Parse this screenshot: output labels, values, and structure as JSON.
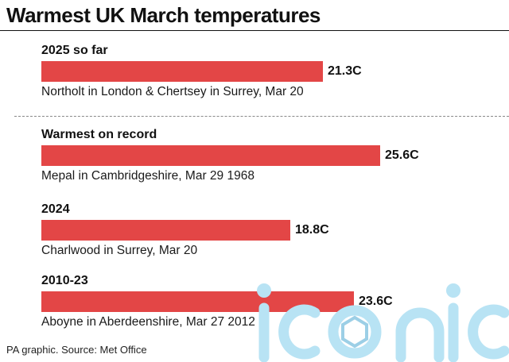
{
  "chart_data": {
    "type": "bar",
    "orientation": "horizontal",
    "title": "Warmest UK March temperatures",
    "unit": "C",
    "categories": [
      "2025 so far",
      "Warmest on record",
      "2024",
      "2010-23"
    ],
    "values": [
      21.3,
      25.6,
      18.8,
      23.6
    ],
    "value_labels": [
      "21.3C",
      "25.6C",
      "18.8C",
      "23.6C"
    ],
    "captions": [
      "Northolt in London & Chertsey in Surrey, Mar 20",
      "Mepal in Cambridgeshire, Mar 29 1968",
      "Charlwood in Surrey, Mar 20",
      "Aboyne in Aberdeenshire, Mar 27 2012"
    ],
    "bar_color": "#e34646",
    "source": "PA graphic. Source: Met Office"
  },
  "watermark": {
    "text": "iconic",
    "color": "#b8e3f4"
  }
}
